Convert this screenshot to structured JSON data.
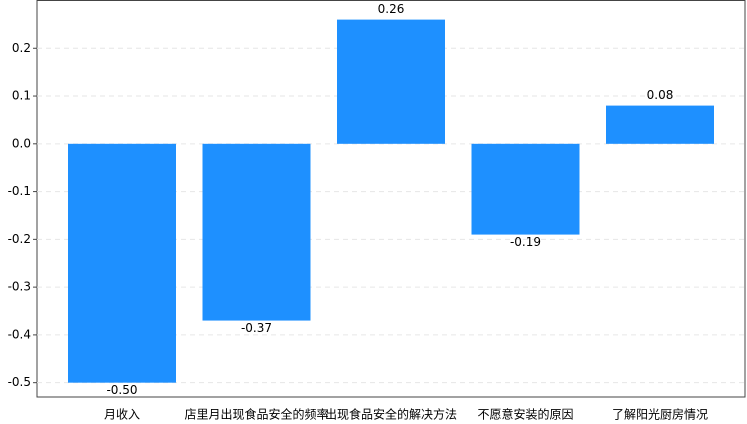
{
  "chart_data": {
    "type": "bar",
    "categories": [
      "月收入",
      "店里月出现食品安全的频率",
      "出现食品安全的解决方法",
      "不愿意安装的原因",
      "了解阳光厨房情况"
    ],
    "values": [
      -0.5,
      -0.37,
      0.26,
      -0.19,
      0.08
    ],
    "value_labels": [
      "-0.50",
      "-0.37",
      "0.26",
      "-0.19",
      "0.08"
    ],
    "color": "#1e90ff",
    "ylim": [
      -0.53,
      0.3
    ],
    "yticks": [
      0.2,
      0.1,
      {
        "value": 0,
        "label": "0.0"
      },
      -0.1,
      -0.2,
      -0.3,
      -0.4,
      -0.5
    ],
    "grid": true
  }
}
